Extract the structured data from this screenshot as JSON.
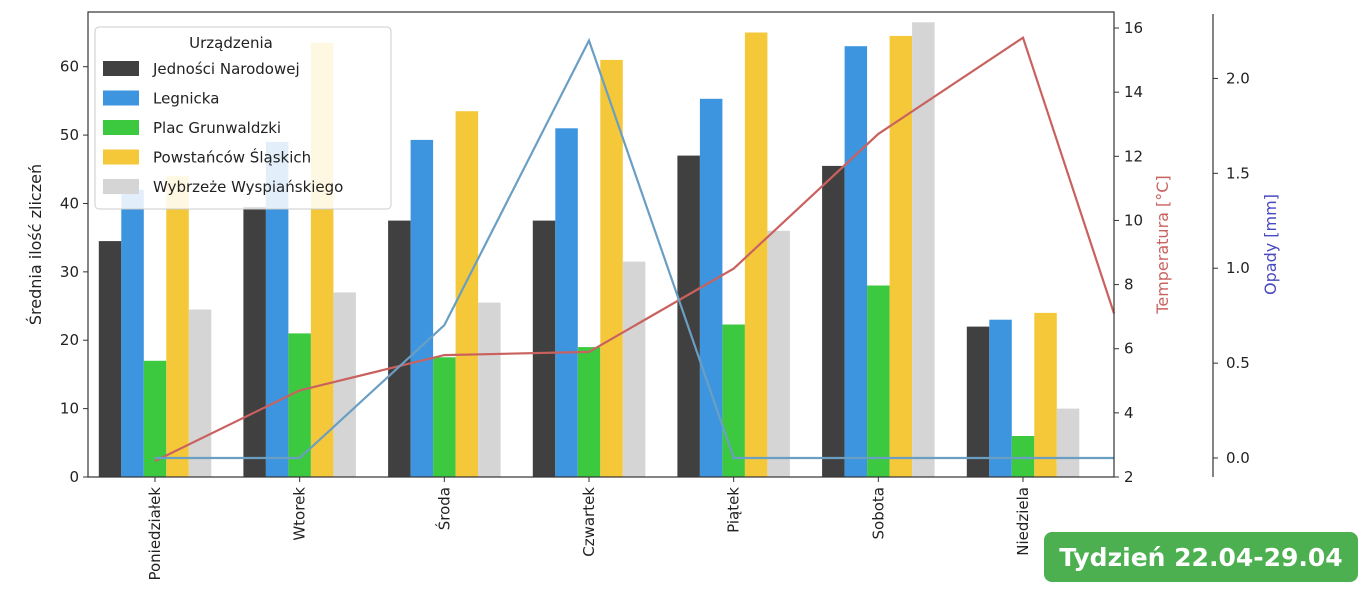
{
  "badge_text": "Tydzień 22.04-29.04",
  "chart_data": {
    "type": "bar",
    "categories": [
      "Poniedziałek",
      "Wtorek",
      "Środa",
      "Czwartek",
      "Piątek",
      "Sobota",
      "Niedziela"
    ],
    "ylabel": "Średnia ilość zliczeń",
    "ylim": [
      0,
      68
    ],
    "yticks": [
      0,
      10,
      20,
      30,
      40,
      50,
      60
    ],
    "legend": {
      "title": "Urządzenia",
      "placement": "top-left"
    },
    "series": [
      {
        "name": "Jedności Narodowej",
        "color": "#404040",
        "values": [
          34.5,
          39.5,
          37.5,
          37.5,
          47,
          45.5,
          22
        ]
      },
      {
        "name": "Legnicka",
        "color": "#3d95e0",
        "values": [
          42,
          49,
          49.3,
          51,
          55.3,
          63,
          23
        ]
      },
      {
        "name": "Plac Grunwaldzki",
        "color": "#3cc940",
        "values": [
          17,
          21,
          17.5,
          19,
          22.3,
          28,
          6
        ]
      },
      {
        "name": "Powstańców Śląskich",
        "color": "#f5c83a",
        "values": [
          44,
          63.5,
          53.5,
          61,
          65,
          64.5,
          24
        ]
      },
      {
        "name": "Wybrzeże Wyspiańskiego",
        "color": "#d5d5d5",
        "values": [
          24.5,
          27,
          25.5,
          31.5,
          36,
          66.5,
          10
        ]
      }
    ],
    "temperature": {
      "label": "Temperatura [°C]",
      "color": "#c9625f",
      "ylim": [
        2,
        16.5
      ],
      "yticks": [
        2,
        4,
        6,
        8,
        10,
        12,
        14,
        16
      ],
      "values": [
        2.5,
        4.7,
        5.8,
        5.9,
        8.5,
        12.7,
        15.7,
        7.1
      ]
    },
    "precipitation": {
      "label": "Opady [mm]",
      "color": "#6a9ec3",
      "ylim": [
        -0.1,
        2.35
      ],
      "yticks": [
        0.0,
        0.5,
        1.0,
        1.5,
        2.0
      ],
      "ytick_labels": [
        "0.0",
        "0.5",
        "1.0",
        "1.5",
        "2.0"
      ],
      "values": [
        0,
        0,
        0.7,
        2.2,
        0,
        0,
        0,
        0
      ]
    }
  }
}
